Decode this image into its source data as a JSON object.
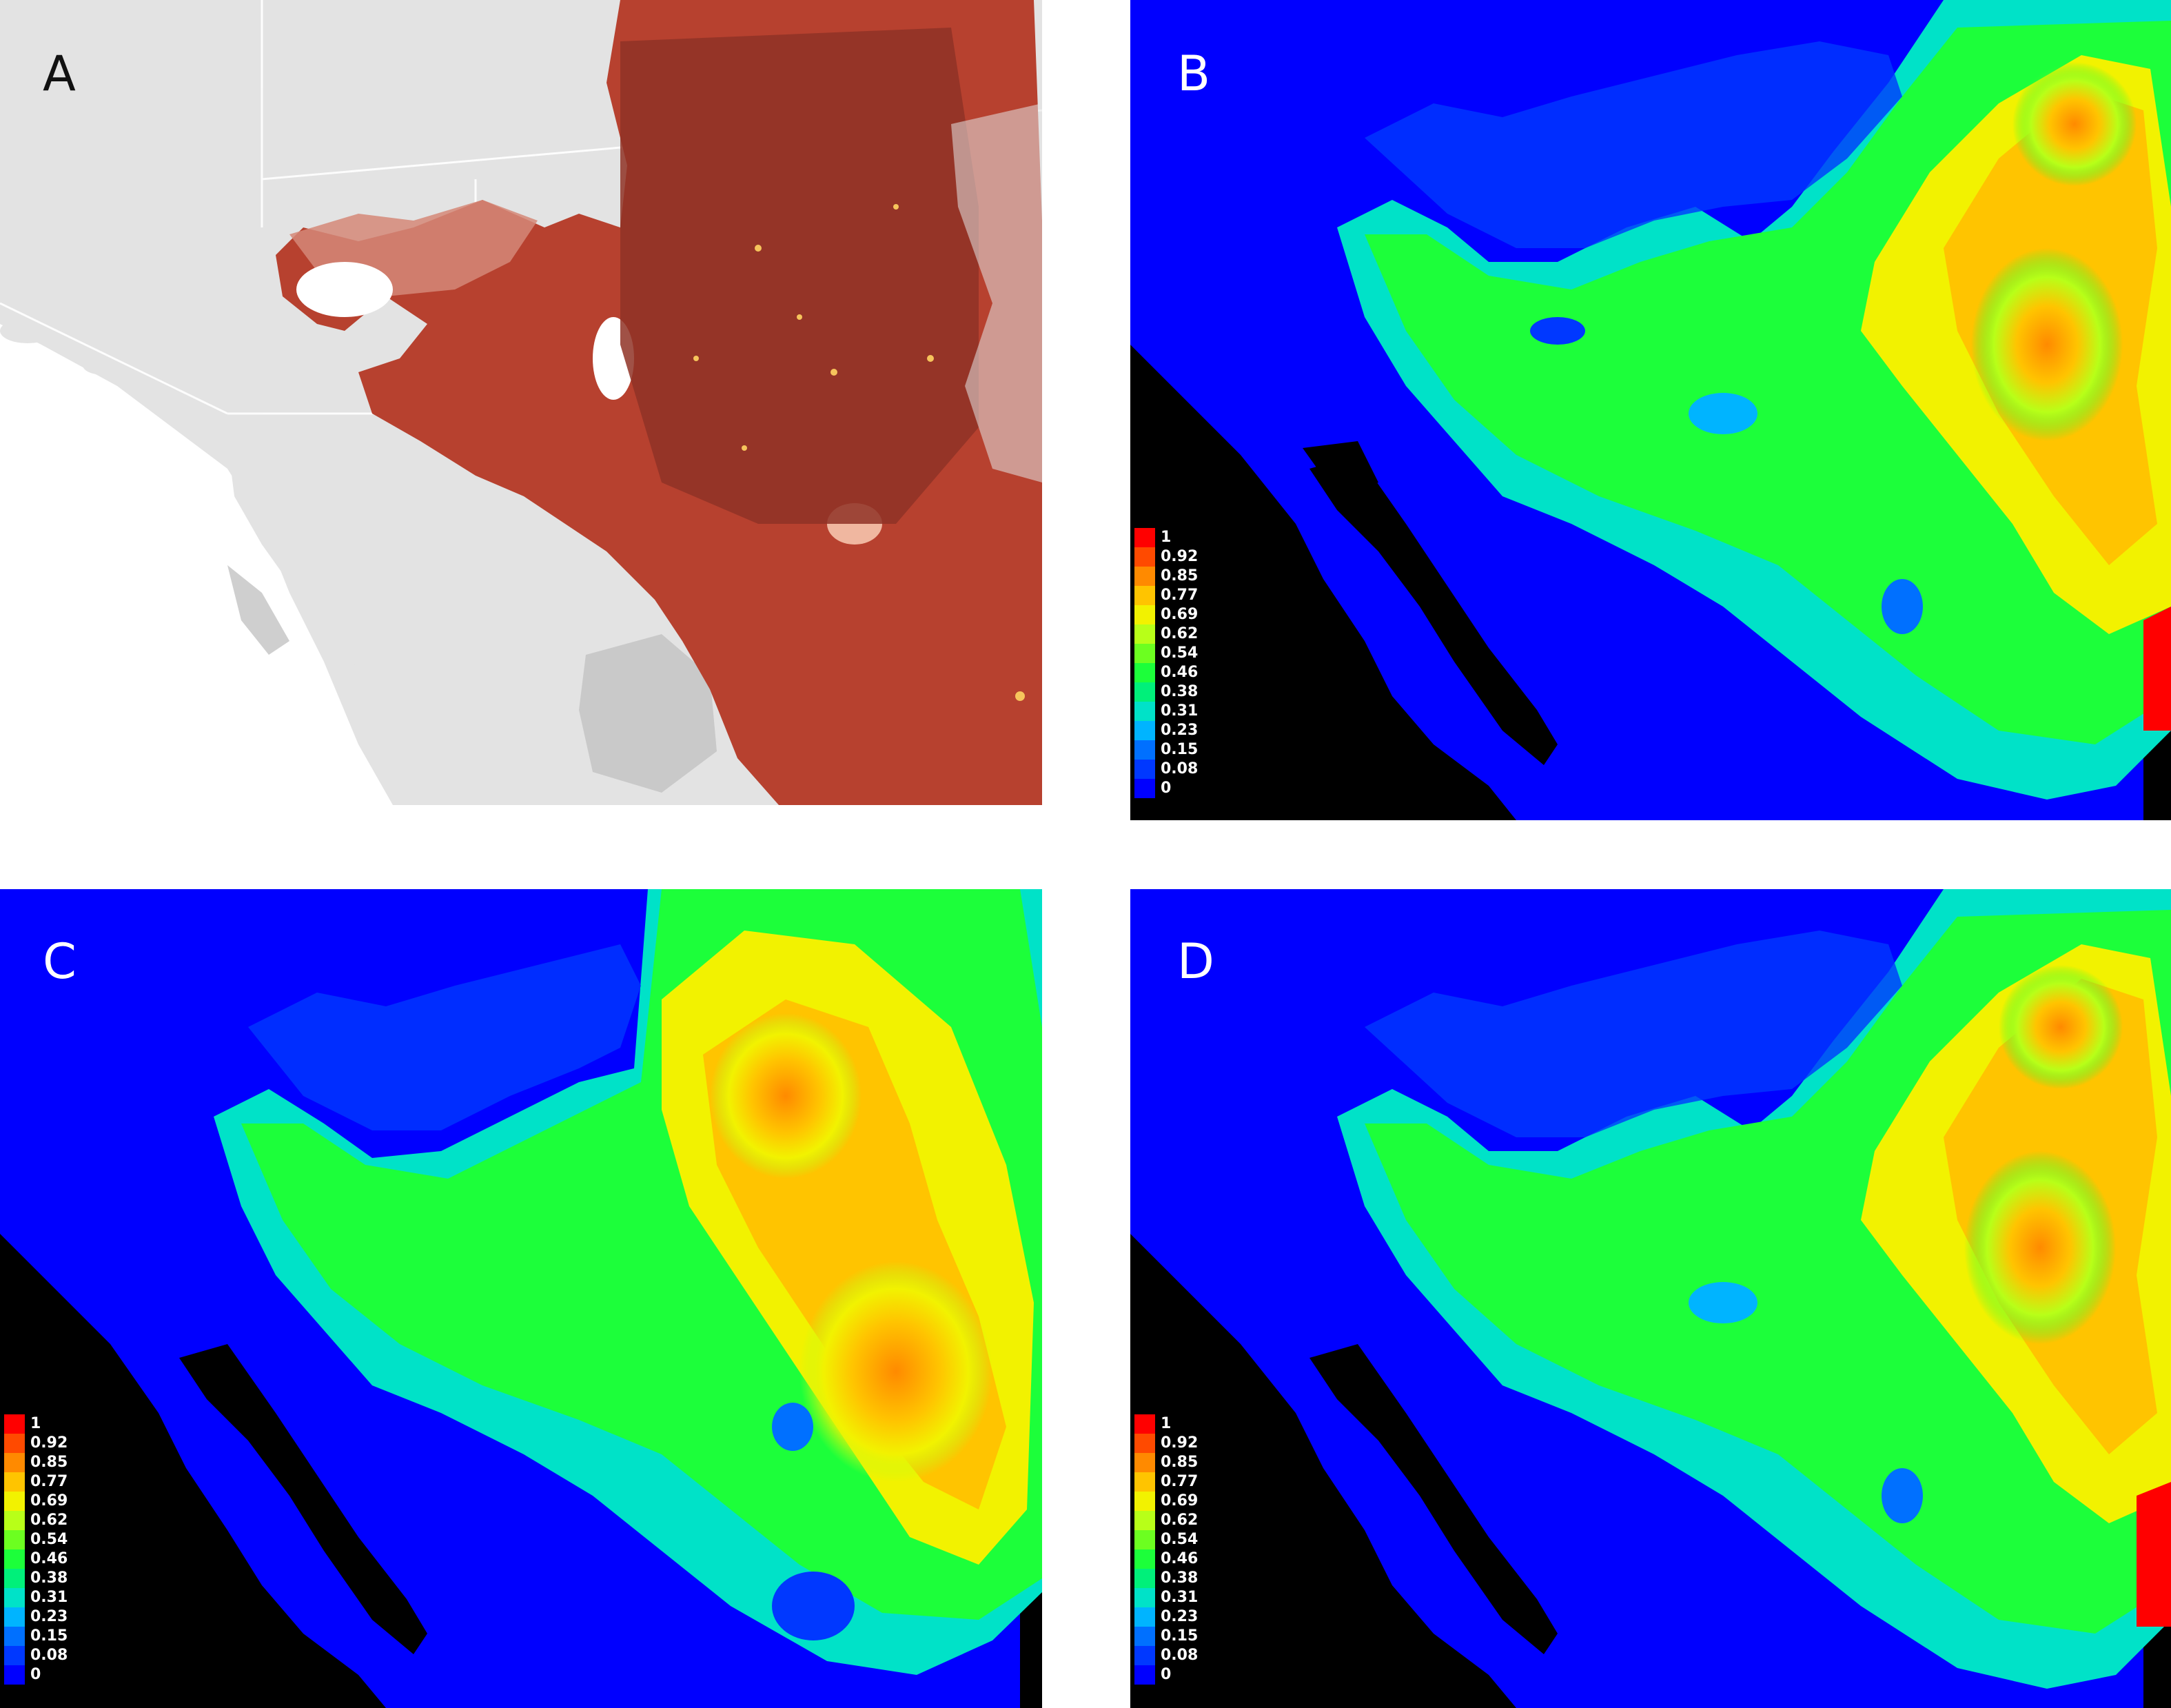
{
  "panels": [
    {
      "id": "A",
      "label": "A"
    },
    {
      "id": "B",
      "label": "B"
    },
    {
      "id": "C",
      "label": "C"
    },
    {
      "id": "D",
      "label": "D"
    }
  ],
  "legend": {
    "labels": [
      "1",
      "0.92",
      "0.85",
      "0.77",
      "0.69",
      "0.62",
      "0.54",
      "0.46",
      "0.38",
      "0.31",
      "0.23",
      "0.15",
      "0.08",
      "0"
    ],
    "colors": [
      "#ff0000",
      "#ff4a00",
      "#ff8a00",
      "#ffc400",
      "#f2f200",
      "#b8ff18",
      "#6cff20",
      "#1cff3a",
      "#00f07a",
      "#00e2c8",
      "#00b4ff",
      "#0070ff",
      "#0038ff",
      "#0000ff"
    ]
  },
  "colors": {
    "ocean": "#000000",
    "low": "#0000ff",
    "land_gray": "#e3e3e3",
    "range_red": "#b7412f"
  }
}
